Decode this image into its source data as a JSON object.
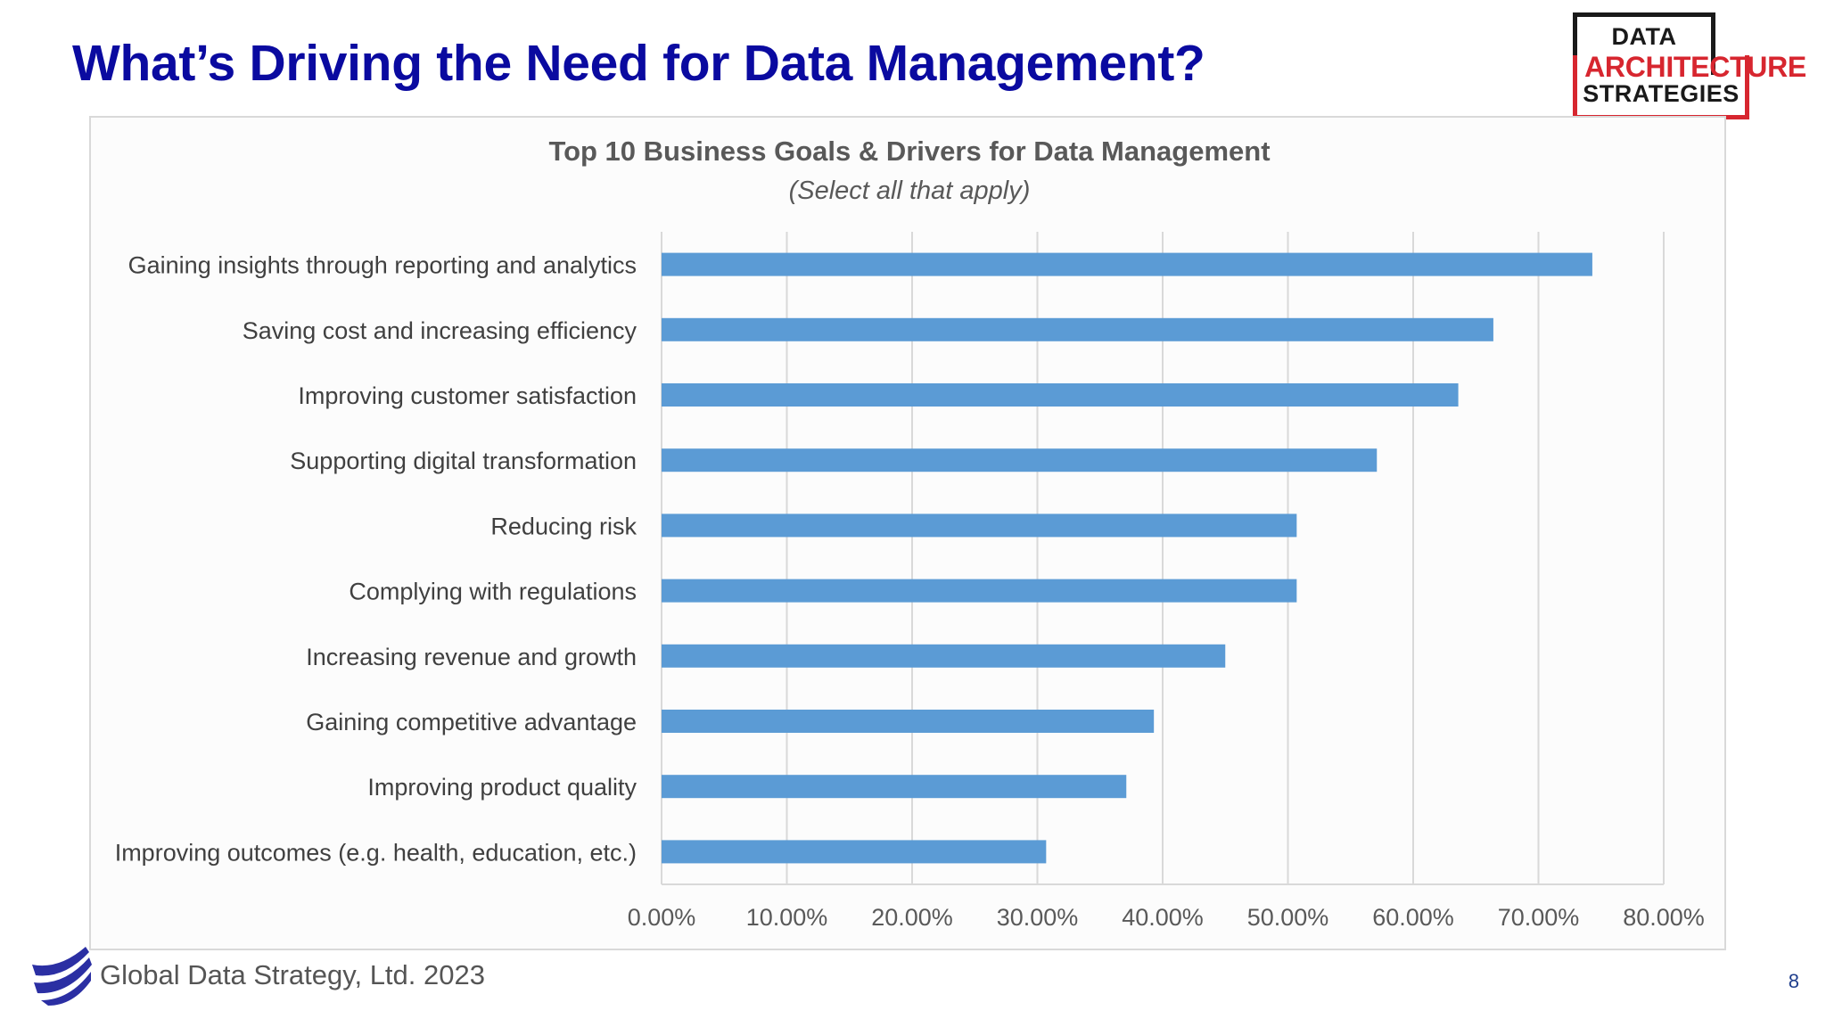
{
  "slide": {
    "title": "What’s Driving the Need for Data Management?",
    "title_color": "#0a0aa0",
    "page_number": "8",
    "page_number_color": "#1f3e8c"
  },
  "footer": {
    "text": "Global Data Strategy, Ltd. 2023",
    "logo_icon": "global-data-strategy-swoosh-icon",
    "logo_color": "#2b2fa3"
  },
  "brand_logo": {
    "line1": "DATA",
    "line2_accent": "A",
    "line2_rest": "RCHITECTURE",
    "line3": "STRATEGIES",
    "accent_color": "#d7262f",
    "dark_color": "#1a1a1a"
  },
  "chart_data": {
    "type": "bar",
    "orientation": "horizontal",
    "title": "Top 10 Business Goals & Drivers for Data Management",
    "subtitle": "(Select all that apply)",
    "categories": [
      "Gaining insights through reporting and analytics",
      "Saving cost and increasing efficiency",
      "Improving customer satisfaction",
      "Supporting digital transformation",
      "Reducing risk",
      "Complying with regulations",
      "Increasing revenue and growth",
      "Gaining competitive advantage",
      "Improving product quality",
      "Improving outcomes (e.g. health, education, etc.)"
    ],
    "values": [
      74.3,
      66.4,
      63.6,
      57.1,
      50.7,
      50.7,
      45.0,
      39.3,
      37.1,
      30.7
    ],
    "xlim": [
      0,
      80
    ],
    "x_ticks": [
      "0.00%",
      "10.00%",
      "20.00%",
      "30.00%",
      "40.00%",
      "50.00%",
      "60.00%",
      "70.00%",
      "80.00%"
    ],
    "xlabel": "",
    "ylabel": "",
    "grid": "vertical",
    "bar_color": "#5b9bd5",
    "grid_color": "#d9d9d9",
    "label_color": "#404040",
    "title_color": "#595959"
  }
}
